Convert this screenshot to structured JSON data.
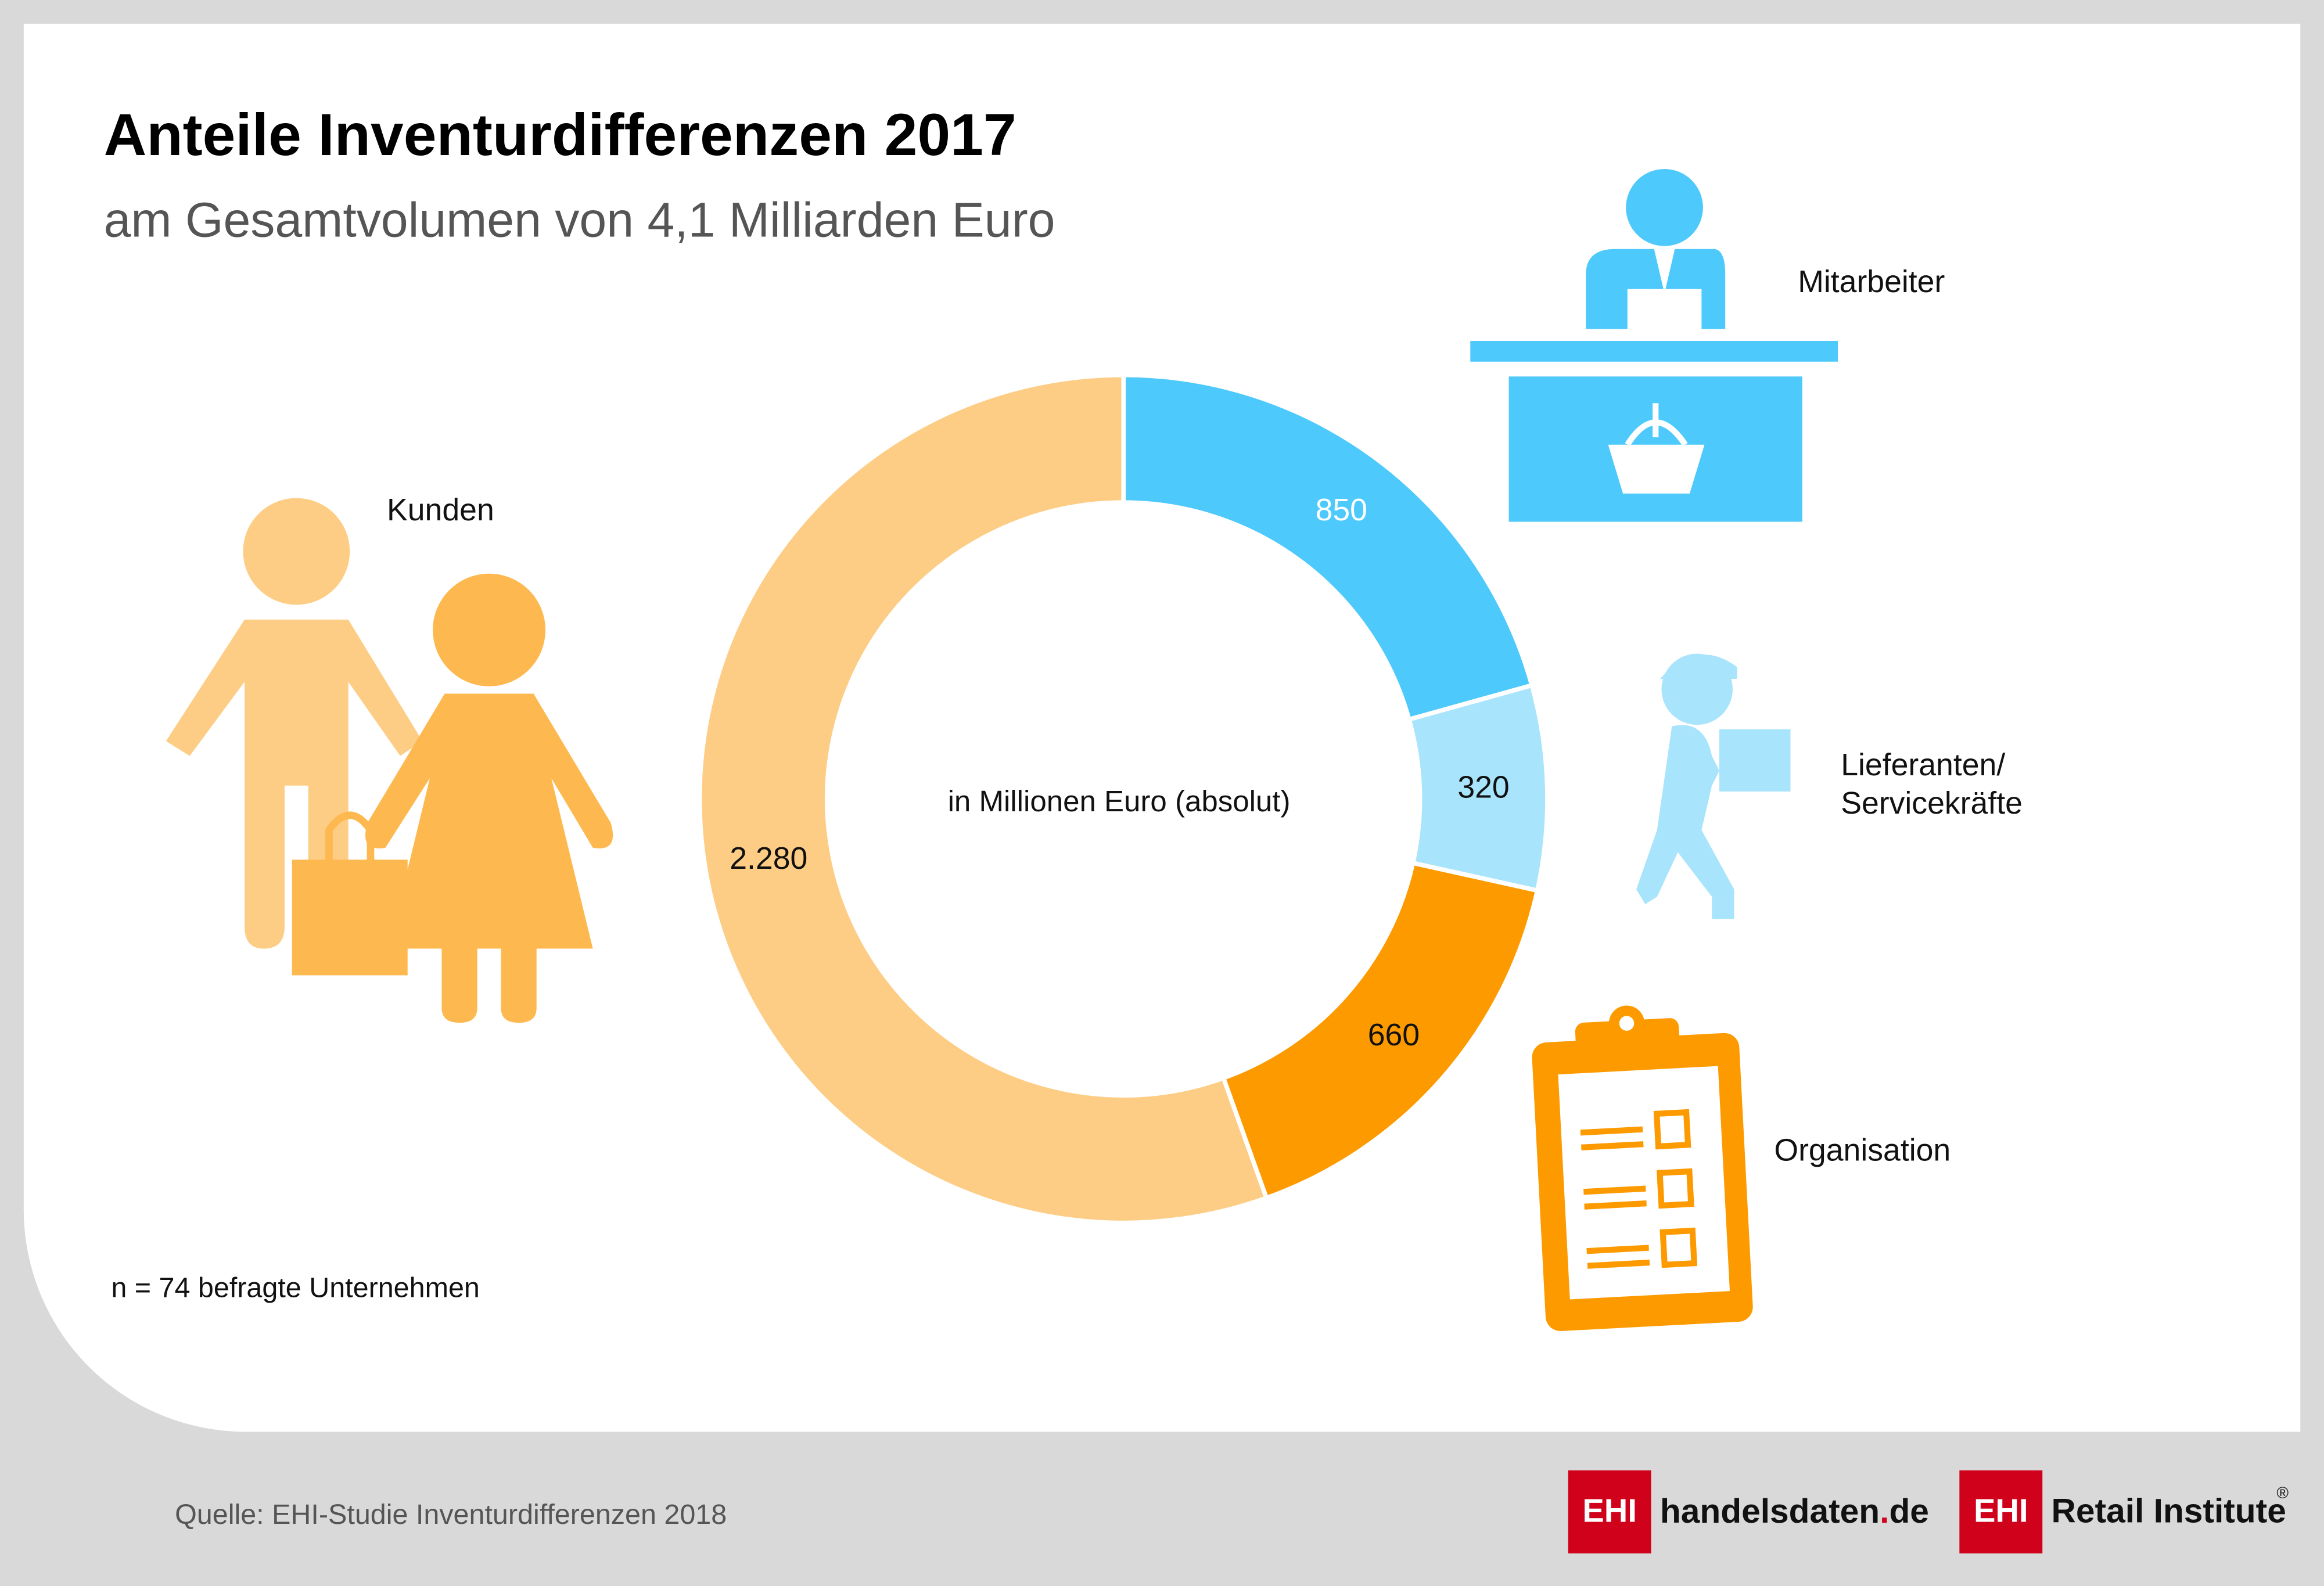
{
  "chart_data": {
    "type": "pie",
    "title": "Anteile Inventurdifferenzen 2017",
    "subtitle": "am Gesamtvolumen von 4,1 Milliarden Euro",
    "center_label": "in Millionen Euro (absolut)",
    "categories": [
      "Mitarbeiter",
      "Lieferanten/ Servicekräfte",
      "Organisation",
      "Kunden"
    ],
    "values": [
      850,
      320,
      660,
      2280
    ],
    "value_labels": [
      "850",
      "320",
      "660",
      "2.280"
    ],
    "colors": [
      "#4dc9fc",
      "#a8e4fc",
      "#fd9a00",
      "#fdcd85"
    ],
    "note": "n = 74 befragte Unternehmen",
    "source": "Quelle: EHI-Studie Inventurdifferenzen 2018"
  },
  "footer": {
    "logo_1": {
      "mark": "EHI",
      "name": "handelsdaten",
      "dot": ".",
      "tld": "de"
    },
    "logo_2": {
      "mark": "EHI",
      "name": "Retail Institute",
      "registered": "®"
    }
  }
}
